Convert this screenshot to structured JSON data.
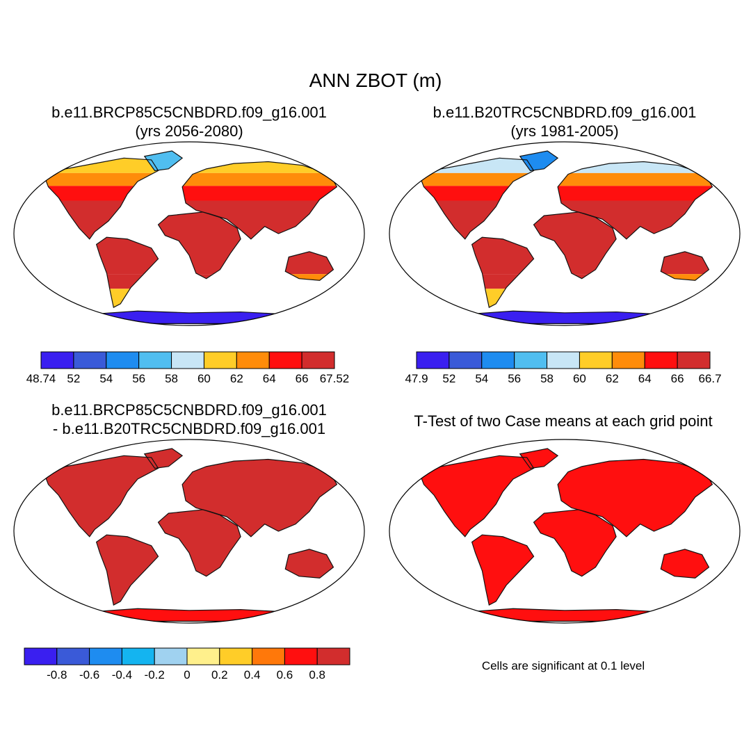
{
  "figure": {
    "title": "ANN ZBOT (m)",
    "ocean_color": "#ffffff",
    "outline_color": "#000000"
  },
  "panels": [
    {
      "id": "future",
      "title_lines": [
        "b.e11.BRCP85C5CNBDRD.f09_g16.001",
        "(yrs 2056-2080)"
      ],
      "colorbar": {
        "colors": [
          "#3a1ff0",
          "#3a5ad8",
          "#1e8cf0",
          "#50bef0",
          "#c8e6f6",
          "#ffcd28",
          "#ff8c0a",
          "#ff0f0f",
          "#d22d2d"
        ],
        "labels": [
          "48.74",
          "52",
          "54",
          "56",
          "58",
          "60",
          "62",
          "64",
          "66",
          "67.52"
        ]
      }
    },
    {
      "id": "control",
      "title_lines": [
        "b.e11.B20TRC5CNBDRD.f09_g16.001",
        "(yrs 1981-2005)"
      ],
      "colorbar": {
        "colors": [
          "#3a1ff0",
          "#3a5ad8",
          "#1e8cf0",
          "#50bef0",
          "#c8e6f6",
          "#ffcd28",
          "#ff8c0a",
          "#ff0f0f",
          "#d22d2d"
        ],
        "labels": [
          "47.9",
          "52",
          "54",
          "56",
          "58",
          "60",
          "62",
          "64",
          "66",
          "66.7"
        ]
      }
    },
    {
      "id": "difference",
      "title_lines": [
        "b.e11.BRCP85C5CNBDRD.f09_g16.001",
        "- b.e11.B20TRC5CNBDRD.f09_g16.001"
      ],
      "colorbar": {
        "colors": [
          "#3a1ff0",
          "#3a5ad8",
          "#1e8cf0",
          "#14b4f0",
          "#a0d2f0",
          "#fff08c",
          "#ffcd28",
          "#ff780a",
          "#ff0f0f",
          "#d22d2d"
        ],
        "labels": [
          "-0.8",
          "-0.6",
          "-0.4",
          "-0.2",
          "0",
          "0.2",
          "0.4",
          "0.6",
          "0.8"
        ]
      }
    },
    {
      "id": "ttest",
      "title_lines": [
        "T-Test of two Case means at each grid point"
      ],
      "note": "Cells are significant at 0.1 level",
      "fill_color": "#ff0f0f"
    }
  ]
}
